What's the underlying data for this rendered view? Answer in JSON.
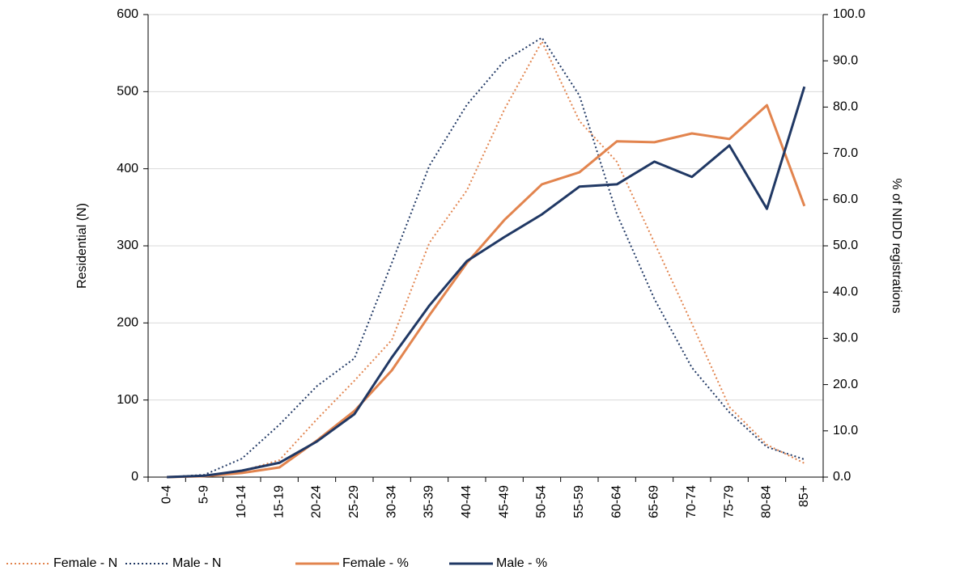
{
  "chart_data": {
    "type": "line",
    "y_label": "Residential  (N)",
    "y2_label": "% of NIDD registrations",
    "categories": [
      "0-4",
      "5-9",
      "10-14",
      "15-19",
      "20-24",
      "25-29",
      "30-34",
      "35-39",
      "40-44",
      "45-49",
      "50-54",
      "55-59",
      "60-64",
      "65-69",
      "70-74",
      "75-79",
      "80-84",
      "85+"
    ],
    "ylim": [
      0,
      600
    ],
    "yticks": [
      0,
      100,
      200,
      300,
      400,
      500,
      600
    ],
    "y2lim": [
      0,
      100
    ],
    "y2ticks": [
      {
        "value": 0,
        "label": "0.0"
      },
      {
        "value": 10,
        "label": "10.0"
      },
      {
        "value": 20,
        "label": "20.0"
      },
      {
        "value": 30,
        "label": "30.0"
      },
      {
        "value": 40,
        "label": "40.0"
      },
      {
        "value": 50,
        "label": "50.0"
      },
      {
        "value": 60,
        "label": "60.0"
      },
      {
        "value": 70,
        "label": "70.0"
      },
      {
        "value": 80,
        "label": "80.0"
      },
      {
        "value": 90,
        "label": "90.0"
      },
      {
        "value": 100,
        "label": "100.0"
      }
    ],
    "grid": true,
    "legend": "bottom-left",
    "series": [
      {
        "name": "Female - N",
        "color": "#e2844e",
        "line_style": "dotted",
        "values": [
          0,
          2,
          8,
          22,
          75,
          125,
          178,
          304,
          372,
          477,
          565,
          462,
          409,
          304,
          199,
          91,
          42,
          18
        ]
      },
      {
        "name": "Male - N",
        "color": "#203864",
        "line_style": "dotted",
        "values": [
          0,
          3,
          24,
          68,
          118,
          154,
          278,
          404,
          483,
          540,
          570,
          495,
          341,
          231,
          142,
          84,
          39,
          23
        ]
      },
      {
        "name": "Female - %",
        "color": "#e2844e",
        "line_style": "solid",
        "axis": "y2",
        "values": [
          0,
          0.2,
          0.9,
          2.1,
          7.9,
          14.3,
          23.1,
          35,
          46.3,
          55.6,
          63.3,
          65.9,
          72.6,
          72.4,
          74.3,
          73.1,
          80.4,
          58.6
        ]
      },
      {
        "name": "Male - %",
        "color": "#203864",
        "line_style": "solid",
        "axis": "y2",
        "values": [
          0,
          0.3,
          1.4,
          3.1,
          7.7,
          13.6,
          25.9,
          37.1,
          46.7,
          51.9,
          56.8,
          62.8,
          63.3,
          68.2,
          64.9,
          71.7,
          58,
          84.4
        ]
      }
    ]
  }
}
